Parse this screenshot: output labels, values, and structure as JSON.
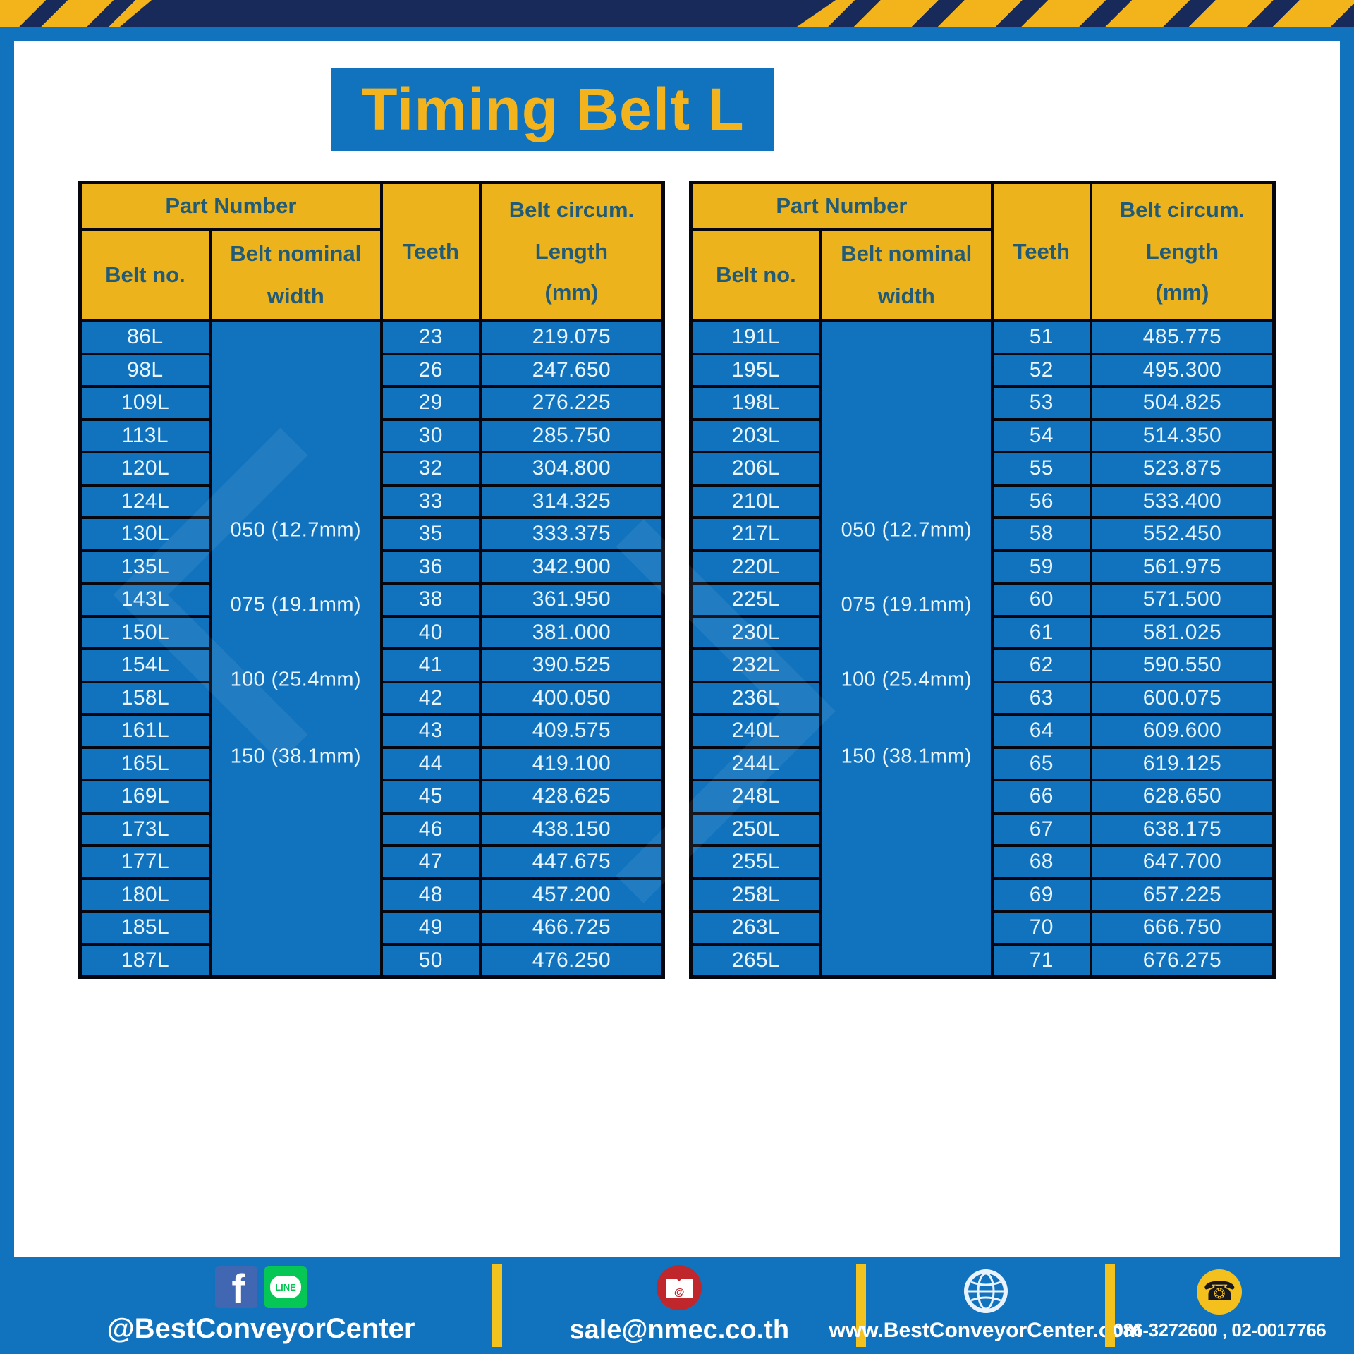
{
  "title": "Timing Belt L",
  "header": {
    "part_number": "Part Number",
    "belt_no": "Belt no.",
    "belt_nominal_width": [
      "Belt nominal",
      "width"
    ],
    "teeth": "Teeth",
    "belt_circum": [
      "Belt circum.",
      "Length",
      "(mm)"
    ]
  },
  "tables": [
    {
      "widths": [
        "050 (12.7mm)",
        "075 (19.1mm)",
        "100 (25.4mm)",
        "150 (38.1mm)"
      ],
      "rows": [
        {
          "belt_no": "86L",
          "teeth": "23",
          "length": "219.075"
        },
        {
          "belt_no": "98L",
          "teeth": "26",
          "length": "247.650"
        },
        {
          "belt_no": "109L",
          "teeth": "29",
          "length": "276.225"
        },
        {
          "belt_no": "113L",
          "teeth": "30",
          "length": "285.750"
        },
        {
          "belt_no": "120L",
          "teeth": "32",
          "length": "304.800"
        },
        {
          "belt_no": "124L",
          "teeth": "33",
          "length": "314.325"
        },
        {
          "belt_no": "130L",
          "teeth": "35",
          "length": "333.375"
        },
        {
          "belt_no": "135L",
          "teeth": "36",
          "length": "342.900"
        },
        {
          "belt_no": "143L",
          "teeth": "38",
          "length": "361.950"
        },
        {
          "belt_no": "150L",
          "teeth": "40",
          "length": "381.000"
        },
        {
          "belt_no": "154L",
          "teeth": "41",
          "length": "390.525"
        },
        {
          "belt_no": "158L",
          "teeth": "42",
          "length": "400.050"
        },
        {
          "belt_no": "161L",
          "teeth": "43",
          "length": "409.575"
        },
        {
          "belt_no": "165L",
          "teeth": "44",
          "length": "419.100"
        },
        {
          "belt_no": "169L",
          "teeth": "45",
          "length": "428.625"
        },
        {
          "belt_no": "173L",
          "teeth": "46",
          "length": "438.150"
        },
        {
          "belt_no": "177L",
          "teeth": "47",
          "length": "447.675"
        },
        {
          "belt_no": "180L",
          "teeth": "48",
          "length": "457.200"
        },
        {
          "belt_no": "185L",
          "teeth": "49",
          "length": "466.725"
        },
        {
          "belt_no": "187L",
          "teeth": "50",
          "length": "476.250"
        }
      ]
    },
    {
      "widths": [
        "050 (12.7mm)",
        "075 (19.1mm)",
        "100 (25.4mm)",
        "150 (38.1mm)"
      ],
      "rows": [
        {
          "belt_no": "191L",
          "teeth": "51",
          "length": "485.775"
        },
        {
          "belt_no": "195L",
          "teeth": "52",
          "length": "495.300"
        },
        {
          "belt_no": "198L",
          "teeth": "53",
          "length": "504.825"
        },
        {
          "belt_no": "203L",
          "teeth": "54",
          "length": "514.350"
        },
        {
          "belt_no": "206L",
          "teeth": "55",
          "length": "523.875"
        },
        {
          "belt_no": "210L",
          "teeth": "56",
          "length": "533.400"
        },
        {
          "belt_no": "217L",
          "teeth": "58",
          "length": "552.450"
        },
        {
          "belt_no": "220L",
          "teeth": "59",
          "length": "561.975"
        },
        {
          "belt_no": "225L",
          "teeth": "60",
          "length": "571.500"
        },
        {
          "belt_no": "230L",
          "teeth": "61",
          "length": "581.025"
        },
        {
          "belt_no": "232L",
          "teeth": "62",
          "length": "590.550"
        },
        {
          "belt_no": "236L",
          "teeth": "63",
          "length": "600.075"
        },
        {
          "belt_no": "240L",
          "teeth": "64",
          "length": "609.600"
        },
        {
          "belt_no": "244L",
          "teeth": "65",
          "length": "619.125"
        },
        {
          "belt_no": "248L",
          "teeth": "66",
          "length": "628.650"
        },
        {
          "belt_no": "250L",
          "teeth": "67",
          "length": "638.175"
        },
        {
          "belt_no": "255L",
          "teeth": "68",
          "length": "647.700"
        },
        {
          "belt_no": "258L",
          "teeth": "69",
          "length": "657.225"
        },
        {
          "belt_no": "263L",
          "teeth": "70",
          "length": "666.750"
        },
        {
          "belt_no": "265L",
          "teeth": "71",
          "length": "676.275"
        }
      ]
    }
  ],
  "footer": {
    "social_handle": "@BestConveyorCenter",
    "line_label": "LINE",
    "mail_at": "@",
    "email": "sale@nmec.co.th",
    "website": "www.BestConveyorCenter.com",
    "phone_numbers": "086-3272600 , 02-0017766"
  },
  "colors": {
    "blue": "#1173BE",
    "gold": "#ECB31D",
    "navy_header_text": "#215B77",
    "hazard_navy": "#182A5A",
    "hazard_yellow": "#F2B31B",
    "cell_text_white": "#E9F5FE",
    "facebook_blue": "#4267B2",
    "line_green": "#06C755",
    "mail_red": "#C0272D",
    "phone_yellow": "#F4C01E"
  }
}
